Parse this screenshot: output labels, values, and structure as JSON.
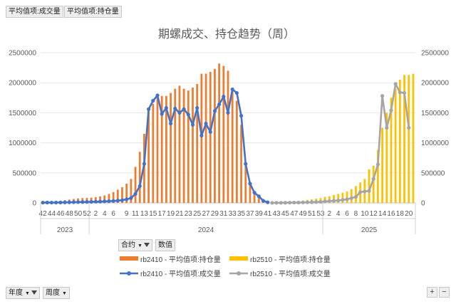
{
  "field_buttons": {
    "volume": "平均值项:成交量",
    "position": "平均值项:持仓量"
  },
  "pivot": {
    "contract": "合约",
    "values": "数值",
    "year": "年度",
    "week": "周度"
  },
  "zoom": {
    "plus": "+",
    "minus": "−"
  },
  "chart_data": {
    "type": "bar+line",
    "title": "期螺成交、持仓趋势（周）",
    "ylim": [
      0,
      2500000
    ],
    "y_ticks": [
      "0",
      "500000",
      "1000000",
      "1500000",
      "2000000",
      "2500000"
    ],
    "y2_ticks": [
      "0",
      "500000",
      "1000000",
      "1500000",
      "2000000",
      "2500000"
    ],
    "x_weeks": [
      42,
      43,
      44,
      45,
      46,
      47,
      48,
      49,
      50,
      51,
      52,
      1,
      2,
      3,
      4,
      5,
      6,
      7,
      8,
      9,
      10,
      11,
      12,
      13,
      14,
      15,
      16,
      17,
      18,
      19,
      20,
      21,
      22,
      23,
      24,
      25,
      26,
      27,
      28,
      29,
      30,
      31,
      32,
      33,
      34,
      35,
      36,
      37,
      38,
      39,
      40,
      41,
      42,
      43,
      44,
      45,
      46,
      47,
      48,
      49,
      50,
      51,
      52,
      53,
      1,
      2,
      3,
      4,
      5,
      6,
      7,
      8,
      9,
      10,
      11,
      12,
      13,
      14,
      15,
      16,
      17,
      18,
      19,
      20,
      21
    ],
    "x_tick_labels": [
      "42",
      "44",
      "46",
      "48",
      "50",
      "52",
      "2",
      "4",
      "6",
      "9",
      "11",
      "13",
      "15",
      "17",
      "19",
      "21",
      "23",
      "25",
      "27",
      "29",
      "31",
      "33",
      "35",
      "37",
      "39",
      "41",
      "43",
      "45",
      "47",
      "49",
      "51",
      "53",
      "2",
      "4",
      "6",
      "8",
      "10",
      "12",
      "14",
      "16",
      "18",
      "20"
    ],
    "year_groups": [
      {
        "label": "2023",
        "count": 11
      },
      {
        "label": "2024",
        "count": 53
      },
      {
        "label": "2025",
        "count": 21
      }
    ],
    "series": [
      {
        "name": "rb2410 - 平均值项:持仓量",
        "kind": "bar",
        "color": "#ED7D31",
        "values": [
          15000,
          18000,
          22000,
          28000,
          35000,
          45000,
          55000,
          65000,
          75000,
          80000,
          82000,
          88000,
          95000,
          110000,
          125000,
          150000,
          180000,
          220000,
          260000,
          320000,
          400000,
          600000,
          850000,
          1150000,
          1550000,
          1650000,
          1750000,
          1780000,
          1780000,
          1830000,
          1900000,
          1950000,
          1900000,
          1870000,
          1920000,
          1980000,
          2150000,
          2150000,
          2180000,
          2230000,
          2320000,
          2280000,
          2200000,
          1900000,
          1700000,
          1300000,
          650000,
          300000,
          150000,
          80000,
          40000,
          15000,
          null,
          null,
          null,
          null,
          null,
          null,
          null,
          null,
          null,
          null,
          null,
          null,
          null,
          null,
          null,
          null,
          null,
          null,
          null,
          null,
          null,
          null,
          null,
          null,
          null,
          null,
          null,
          null,
          null,
          null,
          null,
          null,
          null
        ]
      },
      {
        "name": "rb2510 - 平均值项:持仓量",
        "kind": "bar",
        "color": "#FFC000",
        "values": [
          null,
          null,
          null,
          null,
          null,
          null,
          null,
          null,
          null,
          null,
          null,
          null,
          null,
          null,
          null,
          null,
          null,
          null,
          null,
          null,
          null,
          null,
          null,
          null,
          null,
          null,
          null,
          null,
          null,
          null,
          null,
          null,
          null,
          null,
          null,
          null,
          null,
          null,
          null,
          null,
          null,
          null,
          null,
          null,
          null,
          null,
          null,
          null,
          null,
          null,
          null,
          null,
          5000,
          8000,
          12000,
          15000,
          20000,
          25000,
          30000,
          40000,
          50000,
          60000,
          70000,
          80000,
          100000,
          110000,
          130000,
          150000,
          170000,
          190000,
          230000,
          280000,
          340000,
          400000,
          560000,
          620000,
          880000,
          1250000,
          1500000,
          1750000,
          1900000,
          2050000,
          2130000,
          2130000,
          2150000
        ]
      },
      {
        "name": "rb2410 - 平均值项:成交量",
        "kind": "line",
        "color": "#4472C4",
        "values": [
          5000,
          6000,
          5000,
          6000,
          7000,
          9000,
          10000,
          12000,
          14000,
          15000,
          16000,
          18000,
          20000,
          22000,
          25000,
          28000,
          32000,
          38000,
          45000,
          60000,
          80000,
          150000,
          280000,
          650000,
          1560000,
          1700000,
          1790000,
          1480000,
          1580000,
          1320000,
          1570000,
          1500000,
          1560000,
          1470000,
          1300000,
          1580000,
          1120000,
          1320000,
          1180000,
          1530000,
          1640000,
          1770000,
          1500000,
          1890000,
          1830000,
          1450000,
          650000,
          320000,
          170000,
          110000,
          35000,
          10000,
          null,
          null,
          null,
          null,
          null,
          null,
          null,
          null,
          null,
          null,
          null,
          null,
          null,
          null,
          null,
          null,
          null,
          null,
          null,
          null,
          null,
          null,
          null,
          null,
          null,
          null,
          null,
          null,
          null,
          null,
          null,
          null,
          null
        ]
      },
      {
        "name": "rb2510 - 平均值项:成交量",
        "kind": "line",
        "color": "#A5A5A5",
        "values": [
          null,
          null,
          null,
          null,
          null,
          null,
          null,
          null,
          null,
          null,
          null,
          null,
          null,
          null,
          null,
          null,
          null,
          null,
          null,
          null,
          null,
          null,
          null,
          null,
          null,
          null,
          null,
          null,
          null,
          null,
          null,
          null,
          null,
          null,
          null,
          null,
          null,
          null,
          null,
          null,
          null,
          null,
          null,
          null,
          null,
          null,
          null,
          null,
          null,
          null,
          null,
          null,
          1000,
          1500,
          2000,
          3000,
          4000,
          5000,
          6000,
          8000,
          10000,
          12000,
          15000,
          18000,
          25000,
          30000,
          35000,
          40000,
          50000,
          60000,
          80000,
          100000,
          180000,
          190000,
          200000,
          400000,
          640000,
          1780000,
          1250000,
          1540000,
          1980000,
          1840000,
          1830000,
          1250000,
          null
        ]
      }
    ],
    "legend": "bottom"
  }
}
